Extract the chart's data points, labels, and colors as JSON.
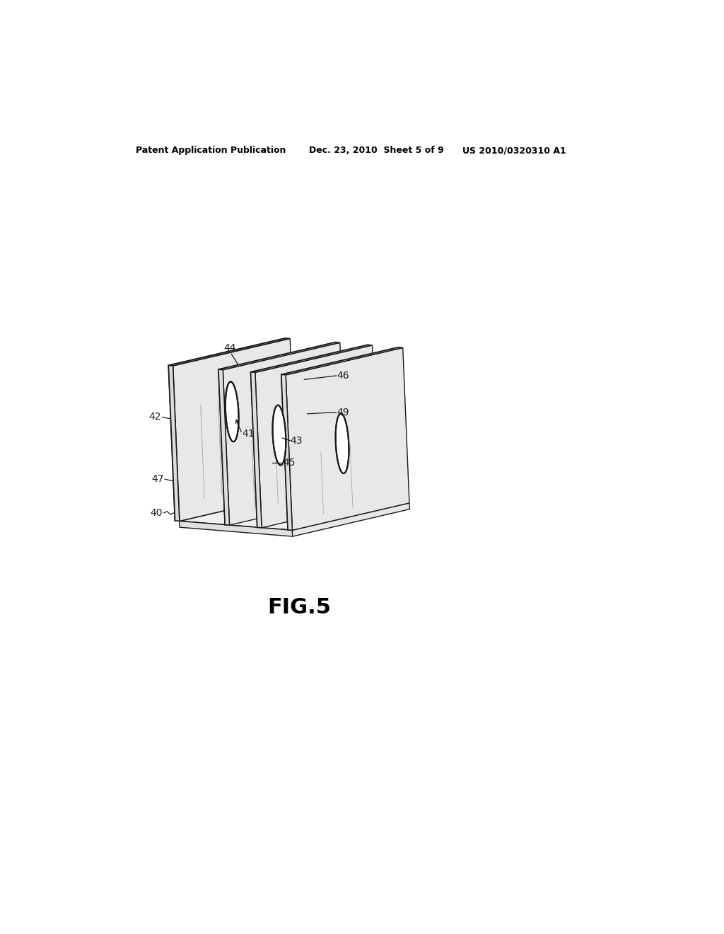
{
  "bg_color": "#ffffff",
  "line_color": "#1a1a1a",
  "header_left": "Patent Application Publication",
  "header_mid": "Dec. 23, 2010  Sheet 5 of 9",
  "header_right": "US 2010/0320310 A1",
  "fig_label": "FIG.5",
  "label_fontsize": 10,
  "header_fontsize": 9
}
